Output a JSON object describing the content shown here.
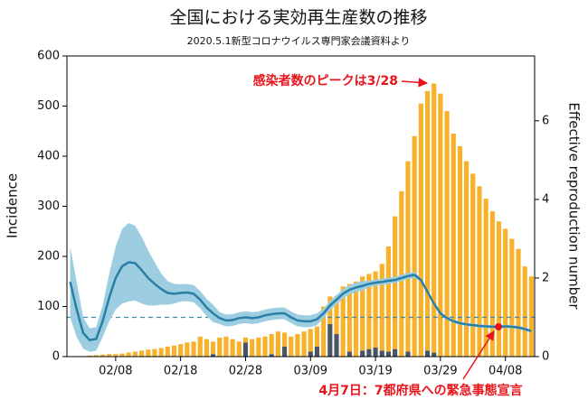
{
  "chart_data": {
    "type": "bar",
    "title": "全国における実効再生産数の推移",
    "subtitle": "2020.5.1新型コロナウイルス専門家会議資料より",
    "y_label": "Incidence",
    "y2_label": "Effective reproduction number",
    "categories": [
      null,
      null,
      null,
      null,
      null,
      null,
      null,
      "02/08",
      null,
      null,
      null,
      null,
      null,
      null,
      null,
      null,
      null,
      "02/18",
      null,
      null,
      null,
      null,
      null,
      null,
      null,
      null,
      null,
      "02/28",
      null,
      null,
      null,
      null,
      null,
      null,
      null,
      null,
      null,
      "03/09",
      null,
      null,
      null,
      null,
      null,
      null,
      null,
      null,
      null,
      "03/19",
      null,
      null,
      null,
      null,
      null,
      null,
      null,
      null,
      null,
      "03/29",
      null,
      null,
      null,
      null,
      null,
      null,
      null,
      null,
      null,
      "04/08",
      null,
      null,
      null,
      null
    ],
    "series": [
      {
        "type": "bar",
        "color": "#4b5464",
        "values": [
          0,
          0,
          0,
          0,
          0,
          0,
          0,
          0,
          0,
          0,
          0,
          0,
          0,
          0,
          0,
          0,
          0,
          0,
          0,
          0,
          0,
          0,
          5,
          0,
          0,
          0,
          0,
          28,
          0,
          0,
          0,
          5,
          0,
          20,
          0,
          0,
          0,
          10,
          20,
          0,
          65,
          45,
          0,
          10,
          0,
          12,
          15,
          18,
          12,
          10,
          15,
          0,
          10,
          0,
          0,
          12,
          8,
          0,
          0,
          0,
          0,
          0,
          0,
          0,
          0,
          0,
          0,
          0,
          0,
          0,
          0,
          0
        ]
      },
      {
        "type": "bar",
        "color": "#f7b12a",
        "values": [
          0,
          0,
          1,
          2,
          3,
          4,
          5,
          5,
          6,
          8,
          10,
          12,
          14,
          15,
          17,
          20,
          22,
          25,
          28,
          30,
          40,
          35,
          25,
          38,
          40,
          35,
          30,
          10,
          35,
          38,
          40,
          40,
          50,
          28,
          40,
          45,
          50,
          45,
          40,
          100,
          55,
          75,
          140,
          135,
          150,
          148,
          150,
          152,
          173,
          210,
          265,
          330,
          380,
          440,
          505,
          518,
          537,
          525,
          490,
          445,
          420,
          390,
          365,
          340,
          315,
          290,
          270,
          255,
          235,
          215,
          180,
          160
        ]
      },
      {
        "type": "line",
        "axis": "y2",
        "color": "#2a7fa5",
        "band_color": "#9dcde0",
        "values": [
          1.9,
          1.2,
          0.6,
          0.42,
          0.45,
          0.9,
          1.5,
          2.0,
          2.3,
          2.4,
          2.38,
          2.2,
          2.0,
          1.85,
          1.72,
          1.62,
          1.6,
          1.62,
          1.63,
          1.6,
          1.45,
          1.25,
          1.1,
          0.98,
          0.92,
          0.93,
          0.98,
          1.0,
          0.98,
          1.0,
          1.05,
          1.08,
          1.1,
          1.1,
          1.0,
          0.92,
          0.9,
          0.9,
          0.95,
          1.1,
          1.3,
          1.45,
          1.6,
          1.7,
          1.76,
          1.8,
          1.85,
          1.88,
          1.9,
          1.93,
          1.95,
          2.0,
          2.05,
          2.08,
          1.95,
          1.65,
          1.35,
          1.1,
          0.98,
          0.9,
          0.85,
          0.82,
          0.8,
          0.78,
          0.77,
          0.76,
          0.76,
          0.77,
          0.76,
          0.74,
          0.7,
          0.65
        ],
        "upper": [
          2.8,
          1.9,
          1.0,
          0.72,
          0.75,
          1.3,
          2.1,
          2.8,
          3.25,
          3.4,
          3.33,
          3.05,
          2.7,
          2.4,
          2.12,
          1.92,
          1.85,
          1.84,
          1.85,
          1.82,
          1.67,
          1.47,
          1.32,
          1.13,
          1.07,
          1.08,
          1.13,
          1.15,
          1.13,
          1.15,
          1.2,
          1.23,
          1.25,
          1.25,
          1.15,
          1.07,
          1.05,
          1.05,
          1.1,
          1.22,
          1.42,
          1.57,
          1.72,
          1.82,
          1.88,
          1.92,
          1.93,
          1.96,
          1.98,
          2.01,
          2.03,
          2.08,
          2.13,
          2.16,
          1.99,
          1.69,
          1.39,
          1.14,
          1.02,
          0.94,
          0.89,
          0.86,
          0.84,
          0.82,
          0.81,
          0.8,
          0.8,
          0.81,
          0.8,
          0.78,
          0.74,
          0.69
        ],
        "lower": [
          1.0,
          0.5,
          0.2,
          0.12,
          0.15,
          0.5,
          0.9,
          1.2,
          1.35,
          1.4,
          1.43,
          1.35,
          1.3,
          1.3,
          1.32,
          1.32,
          1.35,
          1.4,
          1.41,
          1.38,
          1.23,
          1.03,
          0.88,
          0.83,
          0.77,
          0.78,
          0.83,
          0.85,
          0.83,
          0.85,
          0.9,
          0.93,
          0.95,
          0.95,
          0.85,
          0.77,
          0.75,
          0.75,
          0.8,
          0.98,
          1.18,
          1.33,
          1.48,
          1.58,
          1.64,
          1.68,
          1.77,
          1.8,
          1.82,
          1.85,
          1.87,
          1.92,
          1.97,
          2.0,
          1.91,
          1.61,
          1.31,
          1.06,
          0.94,
          0.86,
          0.81,
          0.78,
          0.76,
          0.74,
          0.73,
          0.72,
          0.72,
          0.73,
          0.72,
          0.7,
          0.66,
          0.61
        ]
      }
    ],
    "reference_line": {
      "axis": "y2",
      "value": 1,
      "color": "#3a8ab0"
    },
    "ylim": [
      0,
      600
    ],
    "yticks": [
      0,
      100,
      200,
      300,
      400,
      500,
      600
    ],
    "y2lim": [
      0,
      7.65
    ],
    "y2ticks": [
      0,
      2,
      4,
      6
    ],
    "annotations": [
      "感染者数のピークは3/28",
      "4月7日：7都府県への緊急事態宣言"
    ]
  }
}
